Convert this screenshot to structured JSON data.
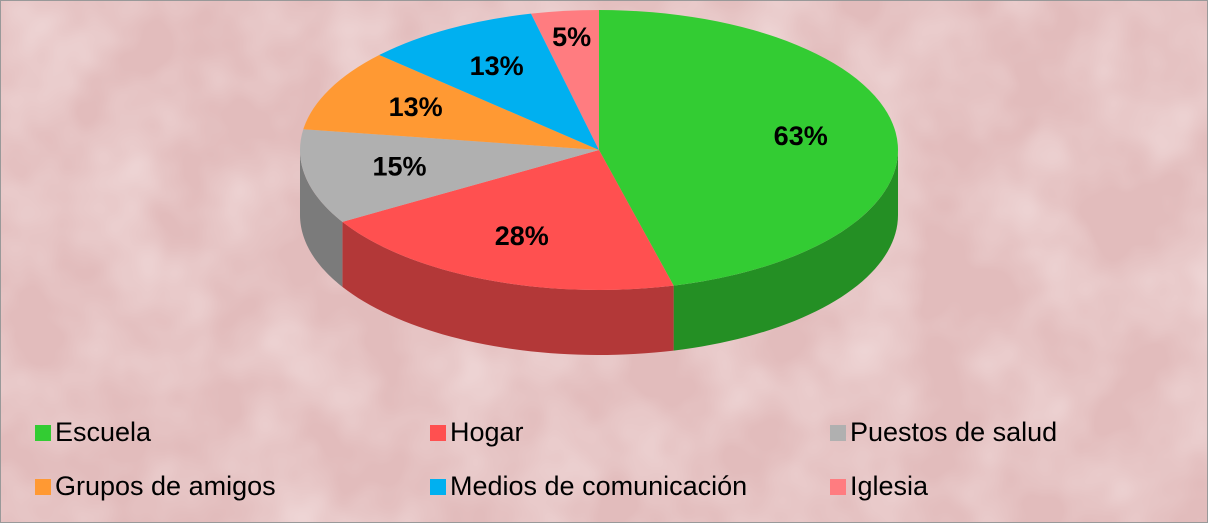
{
  "chart_data": {
    "type": "pie3d",
    "categories": [
      "Escuela",
      "Hogar",
      "Puestos de salud",
      "Grupos de amigos",
      "Medios de comunicación",
      "Iglesia"
    ],
    "values": [
      63,
      28,
      15,
      13,
      13,
      5
    ],
    "value_labels": [
      "63%",
      "28%",
      "15%",
      "13%",
      "13%",
      "5%"
    ],
    "colors": [
      "#33cc33",
      "#ff5050",
      "#b0b0b0",
      "#ff9933",
      "#00b0f0",
      "#ff7c80"
    ]
  }
}
